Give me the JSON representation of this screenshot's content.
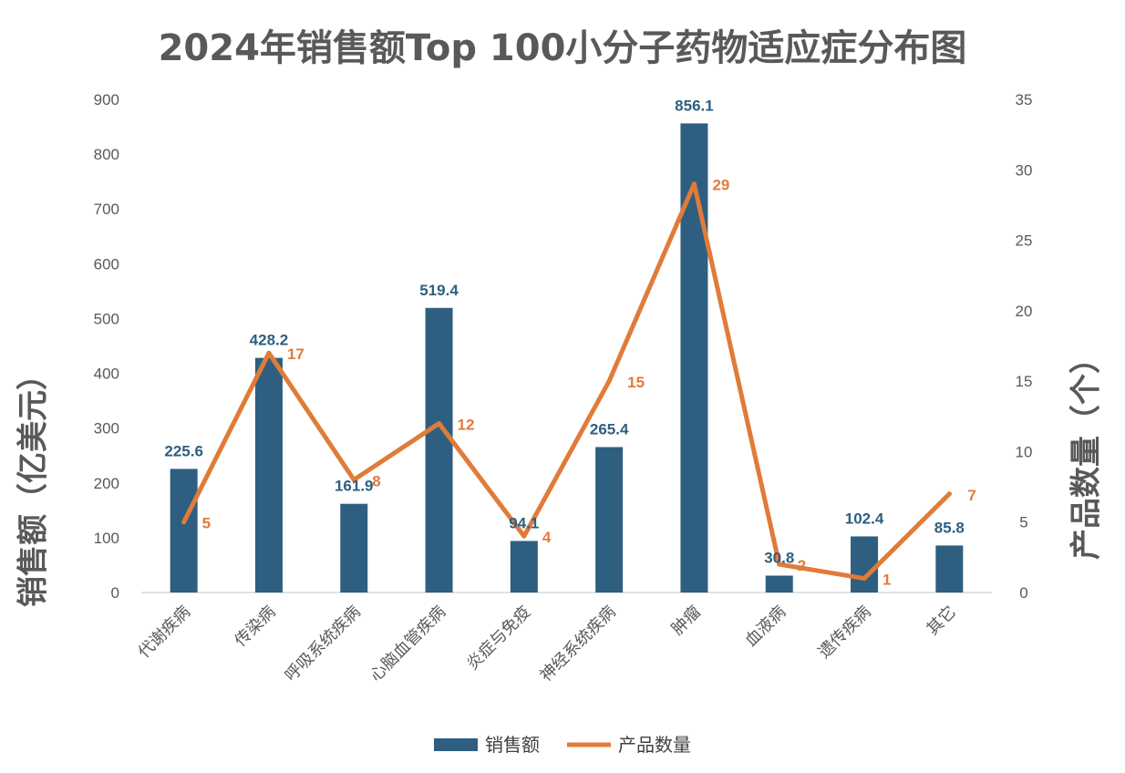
{
  "chart_data": {
    "type": "bar",
    "title": "2024年销售额Top 100小分子药物适应症分布图",
    "categories": [
      "代谢疾病",
      "传染病",
      "呼吸系统疾病",
      "心脑血管疾病",
      "炎症与免疫",
      "神经系统疾病",
      "肿瘤",
      "血液病",
      "遗传疾病",
      "其它"
    ],
    "series": [
      {
        "name": "销售额",
        "type": "bar",
        "axis": "left",
        "values": [
          225.6,
          428.2,
          161.9,
          519.4,
          94.1,
          265.4,
          856.1,
          30.8,
          102.4,
          85.8
        ]
      },
      {
        "name": "产品数量",
        "type": "line",
        "axis": "right",
        "values": [
          5,
          17,
          8,
          12,
          4,
          15,
          29,
          2,
          1,
          7
        ]
      }
    ],
    "ylabel": "销售额（亿美元）",
    "y2label": "产品数量（个）",
    "ylim": [
      0,
      900
    ],
    "y2lim": [
      0,
      35
    ],
    "yticks": [
      "0",
      "100",
      "200",
      "300",
      "400",
      "500",
      "600",
      "700",
      "800",
      "900"
    ],
    "y2ticks": [
      "0",
      "5",
      "10",
      "15",
      "20",
      "25",
      "30",
      "35"
    ],
    "grid": false,
    "legend_position": "bottom",
    "colors": {
      "bar": "#2e5f80",
      "line": "#e07b39",
      "text": "#595959"
    }
  }
}
